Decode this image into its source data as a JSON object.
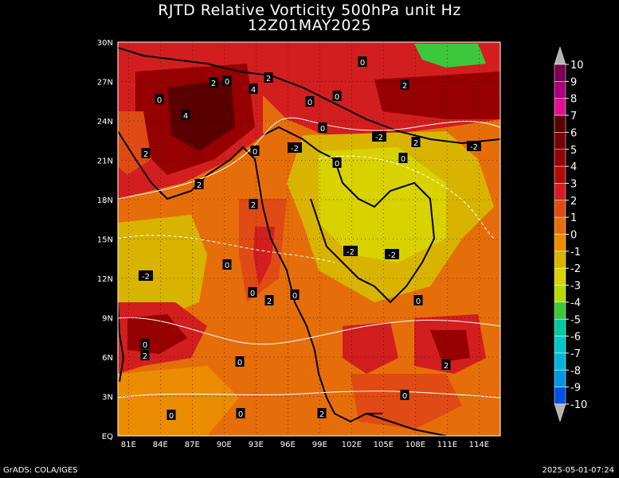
{
  "title_line1": "RJTD Relative Vorticity 500hPa unit Hz",
  "title_line2": "12Z01MAY2025",
  "footer_left": "GrADS: COLA/IGES",
  "footer_right": "2025-05-01-07:24",
  "map": {
    "lat_labels": [
      "30N",
      "27N",
      "24N",
      "21N",
      "18N",
      "15N",
      "12N",
      "9N",
      "6N",
      "3N",
      "EQ"
    ],
    "lon_labels": [
      "81E",
      "84E",
      "87E",
      "90E",
      "93E",
      "96E",
      "99E",
      "102E",
      "105E",
      "108E",
      "111E",
      "114E"
    ]
  },
  "colorbar": {
    "labels": [
      "10",
      "9",
      "8",
      "7",
      "6",
      "5",
      "4",
      "3",
      "2",
      "1",
      "0",
      "-1",
      "-2",
      "-3",
      "-4",
      "-5",
      "-6",
      "-7",
      "-8",
      "-9",
      "-10"
    ],
    "colors": [
      "#7a0050",
      "#a8007a",
      "#e01090",
      "#5a0000",
      "#780000",
      "#960000",
      "#b40a0a",
      "#d21e1e",
      "#e04a14",
      "#e66e0a",
      "#ec8c00",
      "#d8b400",
      "#d8d200",
      "#b4dc00",
      "#3cc83c",
      "#00c8a0",
      "#00c8c8",
      "#00b4dc",
      "#0096e6",
      "#0050e6"
    ],
    "arrow_top_color": "#b4b4b4",
    "arrow_bottom_color": "#b4b4b4"
  },
  "contour_labels": [
    "0",
    "0",
    "2",
    "0",
    "4",
    "2",
    "0",
    "0",
    "2",
    "0",
    "2",
    "-2",
    "2",
    "-2",
    "4",
    "2",
    "0",
    "0",
    "-2",
    "2",
    "0",
    "0",
    "-2",
    "0",
    "-2",
    "-2",
    "0",
    "2",
    "0",
    "0",
    "2",
    "0",
    "2",
    "0",
    "0",
    "2",
    "0"
  ]
}
